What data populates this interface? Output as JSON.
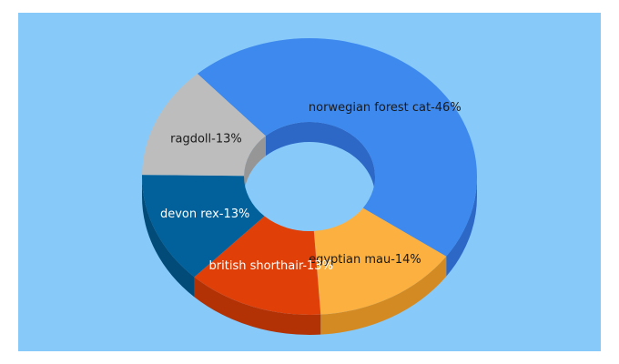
{
  "chart_data": {
    "type": "pie",
    "style": "3d-donut",
    "slices": [
      {
        "label": "norwegian forest cat-46%",
        "value": 46,
        "color": "#3e89ee",
        "side": "#2d68c6",
        "label_color": "#1a1a1a"
      },
      {
        "label": "egyptian mau-14%",
        "value": 14,
        "color": "#fbb03f",
        "side": "#d48a22",
        "label_color": "#1a1a1a"
      },
      {
        "label": "british shorthair-13%",
        "value": 13,
        "color": "#e04008",
        "side": "#b23206",
        "label_color": "#ffffff"
      },
      {
        "label": "devon rex-13%",
        "value": 13,
        "color": "#02609a",
        "side": "#024b78",
        "label_color": "#ffffff"
      },
      {
        "label": "ragdoll-13%",
        "value": 13,
        "color": "#bdbdbd",
        "side": "#969696",
        "label_color": "#1a1a1a"
      }
    ],
    "background_color": "#87cafa"
  }
}
